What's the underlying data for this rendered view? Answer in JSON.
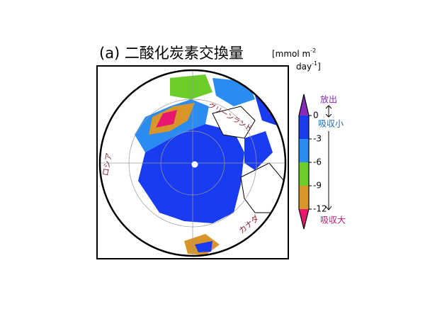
{
  "title": "(a) 二酸化炭素交換量",
  "unit": {
    "line1": "[mmol m",
    "line1_sup": "-2",
    "line2": "day",
    "line2_sup": "-1",
    "close": "]"
  },
  "map_labels": {
    "russia": "ロシア",
    "canada": "カナダ",
    "greenland": "グリーンランド"
  },
  "colorbar": {
    "ticks": [
      0,
      -3,
      -6,
      -9,
      -12
    ],
    "colors": [
      "#8a2ab8",
      "#1a3cf0",
      "#2a8cf0",
      "#6ccc2a",
      "#d8962a",
      "#e8186e"
    ]
  },
  "legend_text": {
    "release": "放出",
    "small_uptake": "吸収小",
    "large_uptake": "吸収大"
  }
}
